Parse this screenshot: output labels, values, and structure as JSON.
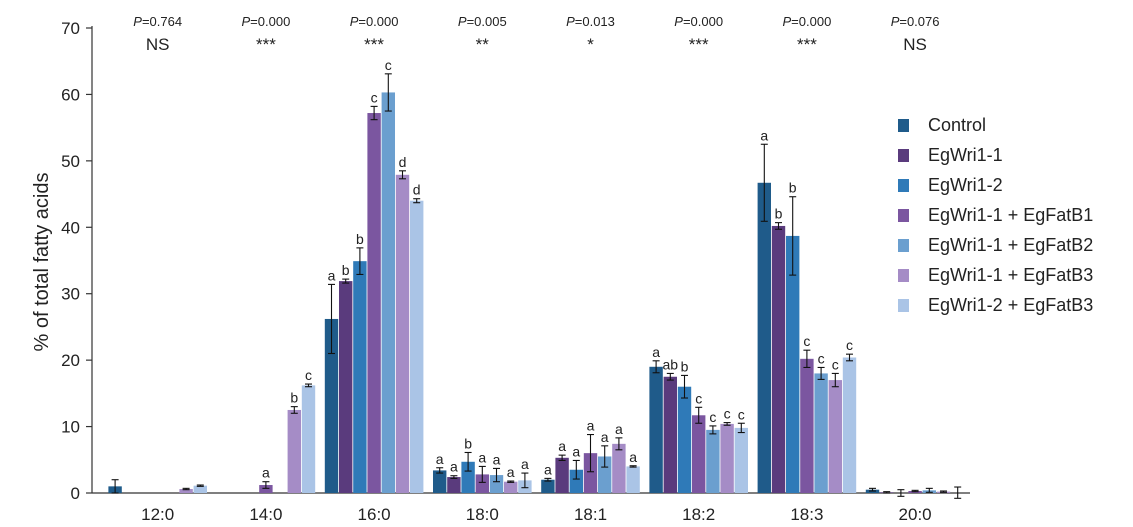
{
  "chart_data": {
    "type": "bar",
    "ylabel": "% of total fatty acids",
    "ylim": [
      0,
      70
    ],
    "yticks": [
      0,
      10,
      20,
      30,
      40,
      50,
      60,
      70
    ],
    "categories": [
      "12:0",
      "14:0",
      "16:0",
      "18:0",
      "18:1",
      "18:2",
      "18:3",
      "20:0"
    ],
    "pvalues": [
      "P=0.764",
      "P=0.000",
      "P=0.000",
      "P=0.005",
      "P=0.013",
      "P=0.000",
      "P=0.000",
      "P=0.076"
    ],
    "significance": [
      "NS",
      "***",
      "***",
      "**",
      "*",
      "***",
      "***",
      "NS"
    ],
    "legend_position": "right",
    "series": [
      {
        "name": "Control",
        "color": "#1f5b8a",
        "values": [
          1.0,
          0,
          26.2,
          3.4,
          2.0,
          19.0,
          46.7,
          0.5
        ],
        "errors": [
          1.0,
          0,
          5.2,
          0.4,
          0.2,
          0.9,
          5.8,
          0.2
        ],
        "letters": [
          "",
          "",
          "a",
          "a",
          "a",
          "a",
          "a",
          ""
        ]
      },
      {
        "name": "EgWri1-1",
        "color": "#5a3b7d",
        "values": [
          0,
          0,
          31.9,
          2.4,
          5.3,
          17.5,
          40.2,
          0.1
        ],
        "errors": [
          0,
          0,
          0.3,
          0.2,
          0.4,
          0.5,
          0.5,
          0.1
        ],
        "letters": [
          "",
          "",
          "b",
          "a",
          "a",
          "ab",
          "b",
          ""
        ]
      },
      {
        "name": "EgWri1-2",
        "color": "#2f7ab8",
        "values": [
          0,
          0,
          34.9,
          4.7,
          3.5,
          16.0,
          38.7,
          0.0
        ],
        "errors": [
          0,
          0,
          2.0,
          1.4,
          1.4,
          1.7,
          5.9,
          0.5
        ],
        "letters": [
          "",
          "",
          "b",
          "b",
          "a",
          "b",
          "b",
          ""
        ]
      },
      {
        "name": "EgWri1-1 + EgFatB1",
        "color": "#7b56a0",
        "values": [
          0,
          1.2,
          57.2,
          2.8,
          6.0,
          11.7,
          20.2,
          0.3
        ],
        "errors": [
          0,
          0.5,
          1.0,
          1.2,
          2.8,
          1.2,
          1.3,
          0.1
        ],
        "letters": [
          "",
          "a",
          "c",
          "a",
          "a",
          "c",
          "c",
          ""
        ]
      },
      {
        "name": "EgWri1-1 + EgFatB2",
        "color": "#6b9fcf",
        "values": [
          0,
          0,
          60.3,
          2.7,
          5.5,
          9.5,
          18.0,
          0.4
        ],
        "errors": [
          0,
          0,
          2.8,
          1.0,
          1.6,
          0.6,
          0.9,
          0.3
        ],
        "letters": [
          "",
          "",
          "c",
          "a",
          "a",
          "c",
          "c",
          ""
        ]
      },
      {
        "name": "EgWri1-1 + EgFatB3",
        "color": "#a58cc6",
        "values": [
          0.6,
          12.5,
          47.9,
          1.7,
          7.4,
          10.4,
          17.0,
          0.2
        ],
        "errors": [
          0.1,
          0.5,
          0.6,
          0.1,
          0.9,
          0.2,
          1.0,
          0.1
        ],
        "letters": [
          "",
          "b",
          "d",
          "a",
          "a",
          "c",
          "c",
          ""
        ]
      },
      {
        "name": "EgWri1-2 + EgFatB3",
        "color": "#aac4e6",
        "values": [
          1.1,
          16.2,
          44.0,
          1.9,
          4.0,
          9.8,
          20.4,
          0.0
        ],
        "errors": [
          0.1,
          0.2,
          0.3,
          1.1,
          0.1,
          0.7,
          0.5,
          0.9
        ],
        "letters": [
          "",
          "c",
          "d",
          "a",
          "a",
          "c",
          "c",
          ""
        ]
      }
    ]
  }
}
